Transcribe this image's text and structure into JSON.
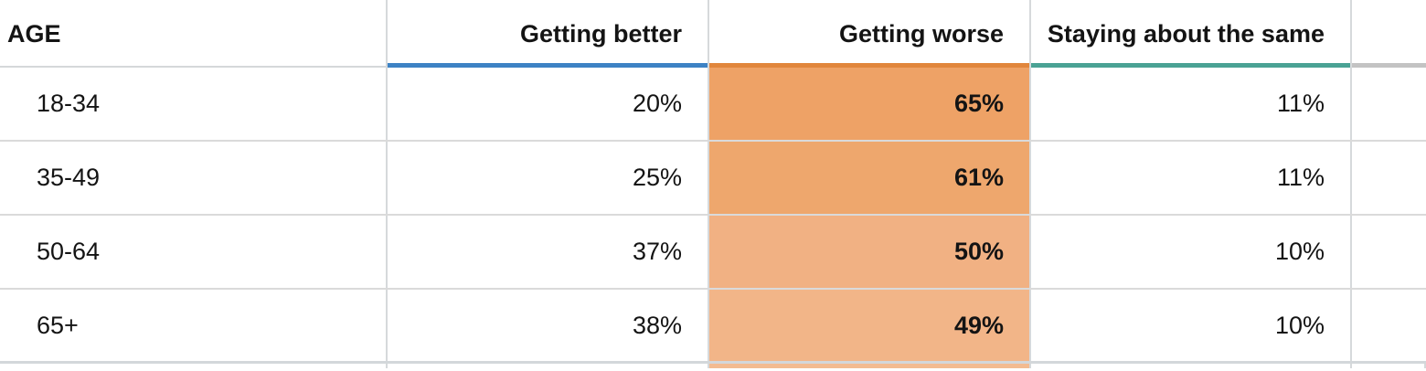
{
  "table": {
    "header": {
      "age_label": "AGE",
      "age_accent": "#d5d8da",
      "columns": [
        {
          "label": "Getting better",
          "accent": "#3d82c4"
        },
        {
          "label": "Getting worse",
          "accent": "#e1863c"
        },
        {
          "label": "Staying about the same",
          "accent": "#4aa294"
        },
        {
          "label": "",
          "accent": "#c3c3c3"
        }
      ]
    },
    "rows": [
      {
        "age": "18-34",
        "getting_better": "20%",
        "getting_worse": "65%",
        "staying_same": "11%",
        "worse_fill": "#eea266"
      },
      {
        "age": "35-49",
        "getting_better": "25%",
        "getting_worse": "61%",
        "staying_same": "11%",
        "worse_fill": "#eea76d"
      },
      {
        "age": "50-64",
        "getting_better": "37%",
        "getting_worse": "50%",
        "staying_same": "10%",
        "worse_fill": "#f1b183"
      },
      {
        "age": "65+",
        "getting_better": "38%",
        "getting_worse": "49%",
        "staying_same": "10%",
        "worse_fill": "#f2b588"
      }
    ],
    "cutoff_row_fill": "#f3bb91"
  },
  "chart_data": {
    "type": "table",
    "title": "",
    "row_header": "AGE",
    "categories": [
      "18-34",
      "35-49",
      "50-64",
      "65+"
    ],
    "series": [
      {
        "name": "Getting better",
        "values": [
          20,
          25,
          37,
          38
        ]
      },
      {
        "name": "Getting worse",
        "values": [
          65,
          61,
          50,
          49
        ],
        "highlighted": true
      },
      {
        "name": "Staying about the same",
        "values": [
          11,
          11,
          10,
          10
        ]
      }
    ],
    "unit": "%",
    "layout": {
      "highlight_style": "heatmap-orange",
      "header_underlines": [
        "#3d82c4",
        "#e1863c",
        "#4aa294",
        "#c3c3c3"
      ],
      "grid": true
    }
  }
}
